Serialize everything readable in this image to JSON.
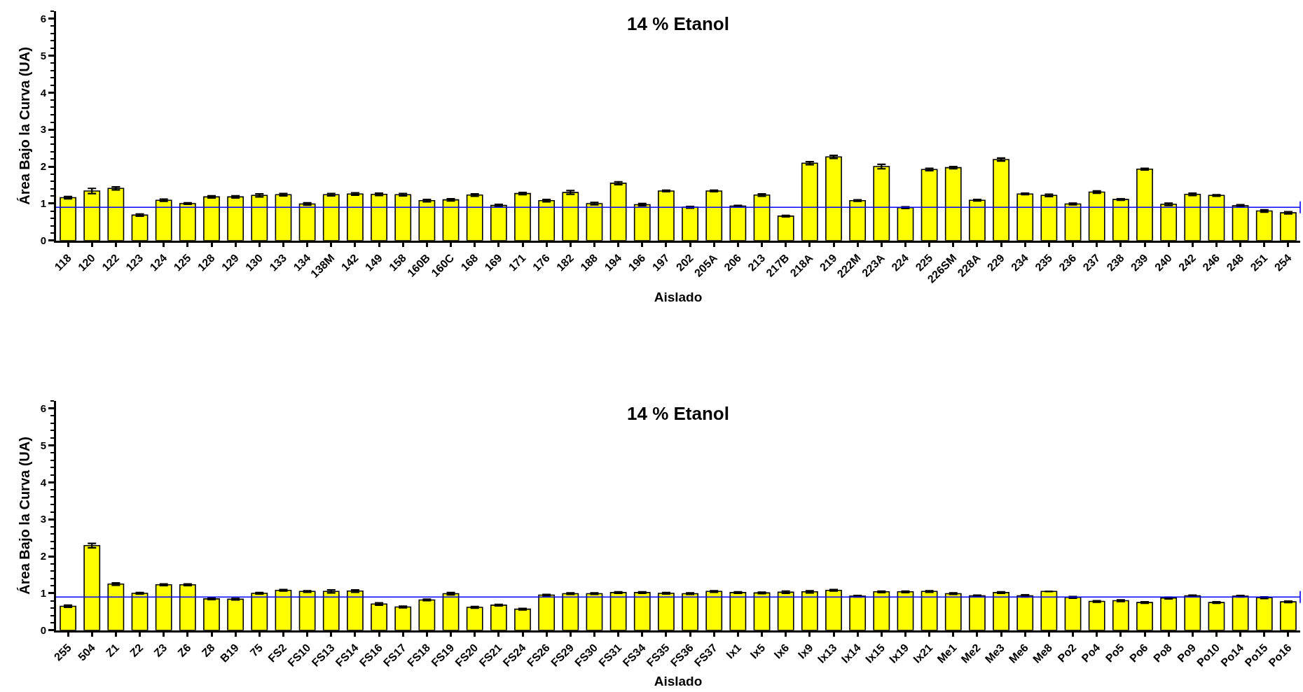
{
  "chart_data": [
    {
      "type": "bar",
      "title": "14 % Etanol",
      "xlabel": "Aislado",
      "ylabel": "Área Bajo la Curva (UA)",
      "color": "#ffff00",
      "categories": [
        "118",
        "120",
        "122",
        "123",
        "124",
        "125",
        "128",
        "129",
        "130",
        "133",
        "134",
        "138M",
        "142",
        "149",
        "158",
        "160B",
        "160C",
        "168",
        "169",
        "171",
        "176",
        "182",
        "188",
        "194",
        "196",
        "197",
        "202",
        "205A",
        "206",
        "213",
        "217B",
        "218A",
        "219",
        "222M",
        "223A",
        "224",
        "225",
        "226SM",
        "228A",
        "229",
        "234",
        "235",
        "236",
        "237",
        "238",
        "239",
        "240",
        "242",
        "246",
        "248",
        "251",
        "254"
      ],
      "values": [
        1.16,
        1.34,
        1.41,
        0.69,
        1.09,
        1.0,
        1.18,
        1.18,
        1.22,
        1.24,
        0.99,
        1.24,
        1.26,
        1.25,
        1.24,
        1.08,
        1.1,
        1.23,
        0.95,
        1.27,
        1.08,
        1.3,
        1.0,
        1.55,
        0.97,
        1.34,
        0.9,
        1.34,
        0.93,
        1.23,
        0.66,
        2.09,
        2.26,
        1.08,
        2.0,
        0.89,
        1.92,
        1.97,
        1.09,
        2.19,
        1.26,
        1.22,
        0.99,
        1.31,
        1.11,
        1.93,
        0.98,
        1.25,
        1.22,
        0.94,
        0.8,
        0.75
      ],
      "errors": [
        0.03,
        0.07,
        0.04,
        0.03,
        0.03,
        0.02,
        0.03,
        0.03,
        0.04,
        0.03,
        0.03,
        0.03,
        0.03,
        0.03,
        0.03,
        0.03,
        0.03,
        0.03,
        0.03,
        0.03,
        0.03,
        0.05,
        0.03,
        0.04,
        0.03,
        0.02,
        0.02,
        0.02,
        0.02,
        0.03,
        0.02,
        0.04,
        0.04,
        0.02,
        0.06,
        0.02,
        0.03,
        0.03,
        0.02,
        0.04,
        0.02,
        0.03,
        0.02,
        0.03,
        0.02,
        0.02,
        0.03,
        0.03,
        0.02,
        0.03,
        0.03,
        0.03
      ],
      "ylim": [
        0,
        6.2
      ],
      "yticks": [
        0,
        {
          "value": 0.2,
          "label": null
        },
        {
          "value": 0.4,
          "label": null
        },
        {
          "value": 0.6,
          "label": null
        },
        {
          "value": 0.8,
          "label": null
        },
        1,
        {
          "value": 1.2,
          "label": null
        },
        {
          "value": 1.4,
          "label": null
        },
        {
          "value": 1.6,
          "label": null
        },
        {
          "value": 1.8,
          "label": null
        },
        2,
        {
          "value": 2.2,
          "label": null
        },
        {
          "value": 2.4,
          "label": null
        },
        {
          "value": 2.6,
          "label": null
        },
        {
          "value": 2.8,
          "label": null
        },
        3,
        {
          "value": 3.2,
          "label": null
        },
        {
          "value": 3.4,
          "label": null
        },
        {
          "value": 3.6,
          "label": null
        },
        {
          "value": 3.8,
          "label": null
        },
        4,
        {
          "value": 4.2,
          "label": null
        },
        {
          "value": 4.4,
          "label": null
        },
        {
          "value": 4.6,
          "label": null
        },
        {
          "value": 4.8,
          "label": null
        },
        5,
        {
          "value": 5.2,
          "label": null
        },
        {
          "value": 5.4,
          "label": null
        },
        {
          "value": 5.6,
          "label": null
        },
        {
          "value": 5.8,
          "label": null
        },
        6,
        {
          "value": 6.2,
          "label": null
        }
      ],
      "ref_lines": [
        {
          "axis": "y",
          "value": 0.9,
          "color": "#0000ff"
        }
      ]
    },
    {
      "type": "bar",
      "title": "14 % Etanol",
      "xlabel": "Aislado",
      "ylabel": "Área Bajo la Curva (UA)",
      "color": "#ffff00",
      "categories": [
        "255",
        "504",
        "Z1",
        "Z2",
        "Z3",
        "Z6",
        "Z8",
        "B19",
        "75",
        "FS2",
        "FS10",
        "FS13",
        "FS14",
        "FS16",
        "FS17",
        "FS18",
        "FS19",
        "FS20",
        "FS21",
        "FS24",
        "FS26",
        "FS29",
        "FS30",
        "FS31",
        "FS34",
        "FS35",
        "FS36",
        "FS37",
        "Ix1",
        "Ix5",
        "Ix6",
        "Ix9",
        "Ix13",
        "Ix14",
        "Ix15",
        "Ix19",
        "Ix21",
        "Me1",
        "Me2",
        "Me3",
        "Me6",
        "Me8",
        "Po2",
        "Po4",
        "Po5",
        "Po6",
        "Po8",
        "Po9",
        "Po10",
        "Po14",
        "Po15",
        "Po16"
      ],
      "values": [
        0.65,
        2.29,
        1.25,
        1.0,
        1.23,
        1.23,
        0.85,
        0.84,
        1.0,
        1.08,
        1.05,
        1.05,
        1.06,
        0.71,
        0.63,
        0.82,
        0.99,
        0.62,
        0.68,
        0.57,
        0.95,
        0.99,
        0.99,
        1.02,
        1.02,
        1.0,
        0.99,
        1.05,
        1.02,
        1.01,
        1.03,
        1.04,
        1.08,
        0.92,
        1.04,
        1.04,
        1.05,
        0.99,
        0.93,
        1.02,
        0.93,
        1.05,
        0.89,
        0.78,
        0.8,
        0.75,
        0.87,
        0.93,
        0.75,
        0.92,
        0.88,
        0.77
      ],
      "errors": [
        0.03,
        0.06,
        0.03,
        0.02,
        0.02,
        0.02,
        0.02,
        0.02,
        0.02,
        0.02,
        0.02,
        0.04,
        0.03,
        0.03,
        0.02,
        0.02,
        0.03,
        0.02,
        0.02,
        0.02,
        0.02,
        0.02,
        0.02,
        0.02,
        0.02,
        0.02,
        0.02,
        0.02,
        0.02,
        0.02,
        0.03,
        0.03,
        0.02,
        0.02,
        0.02,
        0.02,
        0.02,
        0.02,
        0.02,
        0.02,
        0.03,
        null,
        0.02,
        0.02,
        0.02,
        0.02,
        0.02,
        0.02,
        0.02,
        0.02,
        0.02,
        0.02
      ],
      "ylim": [
        0,
        6.2
      ],
      "yticks": [
        0,
        {
          "value": 0.2,
          "label": null
        },
        {
          "value": 0.4,
          "label": null
        },
        {
          "value": 0.6,
          "label": null
        },
        {
          "value": 0.8,
          "label": null
        },
        1,
        {
          "value": 1.2,
          "label": null
        },
        {
          "value": 1.4,
          "label": null
        },
        {
          "value": 1.6,
          "label": null
        },
        {
          "value": 1.8,
          "label": null
        },
        2,
        {
          "value": 2.2,
          "label": null
        },
        {
          "value": 2.4,
          "label": null
        },
        {
          "value": 2.6,
          "label": null
        },
        {
          "value": 2.8,
          "label": null
        },
        3,
        {
          "value": 3.2,
          "label": null
        },
        {
          "value": 3.4,
          "label": null
        },
        {
          "value": 3.6,
          "label": null
        },
        {
          "value": 3.8,
          "label": null
        },
        4,
        {
          "value": 4.2,
          "label": null
        },
        {
          "value": 4.4,
          "label": null
        },
        {
          "value": 4.6,
          "label": null
        },
        {
          "value": 4.8,
          "label": null
        },
        5,
        {
          "value": 5.2,
          "label": null
        },
        {
          "value": 5.4,
          "label": null
        },
        {
          "value": 5.6,
          "label": null
        },
        {
          "value": 5.8,
          "label": null
        },
        6,
        {
          "value": 6.2,
          "label": null
        }
      ],
      "ref_lines": [
        {
          "axis": "y",
          "value": 0.9,
          "color": "#0000ff"
        }
      ]
    }
  ]
}
